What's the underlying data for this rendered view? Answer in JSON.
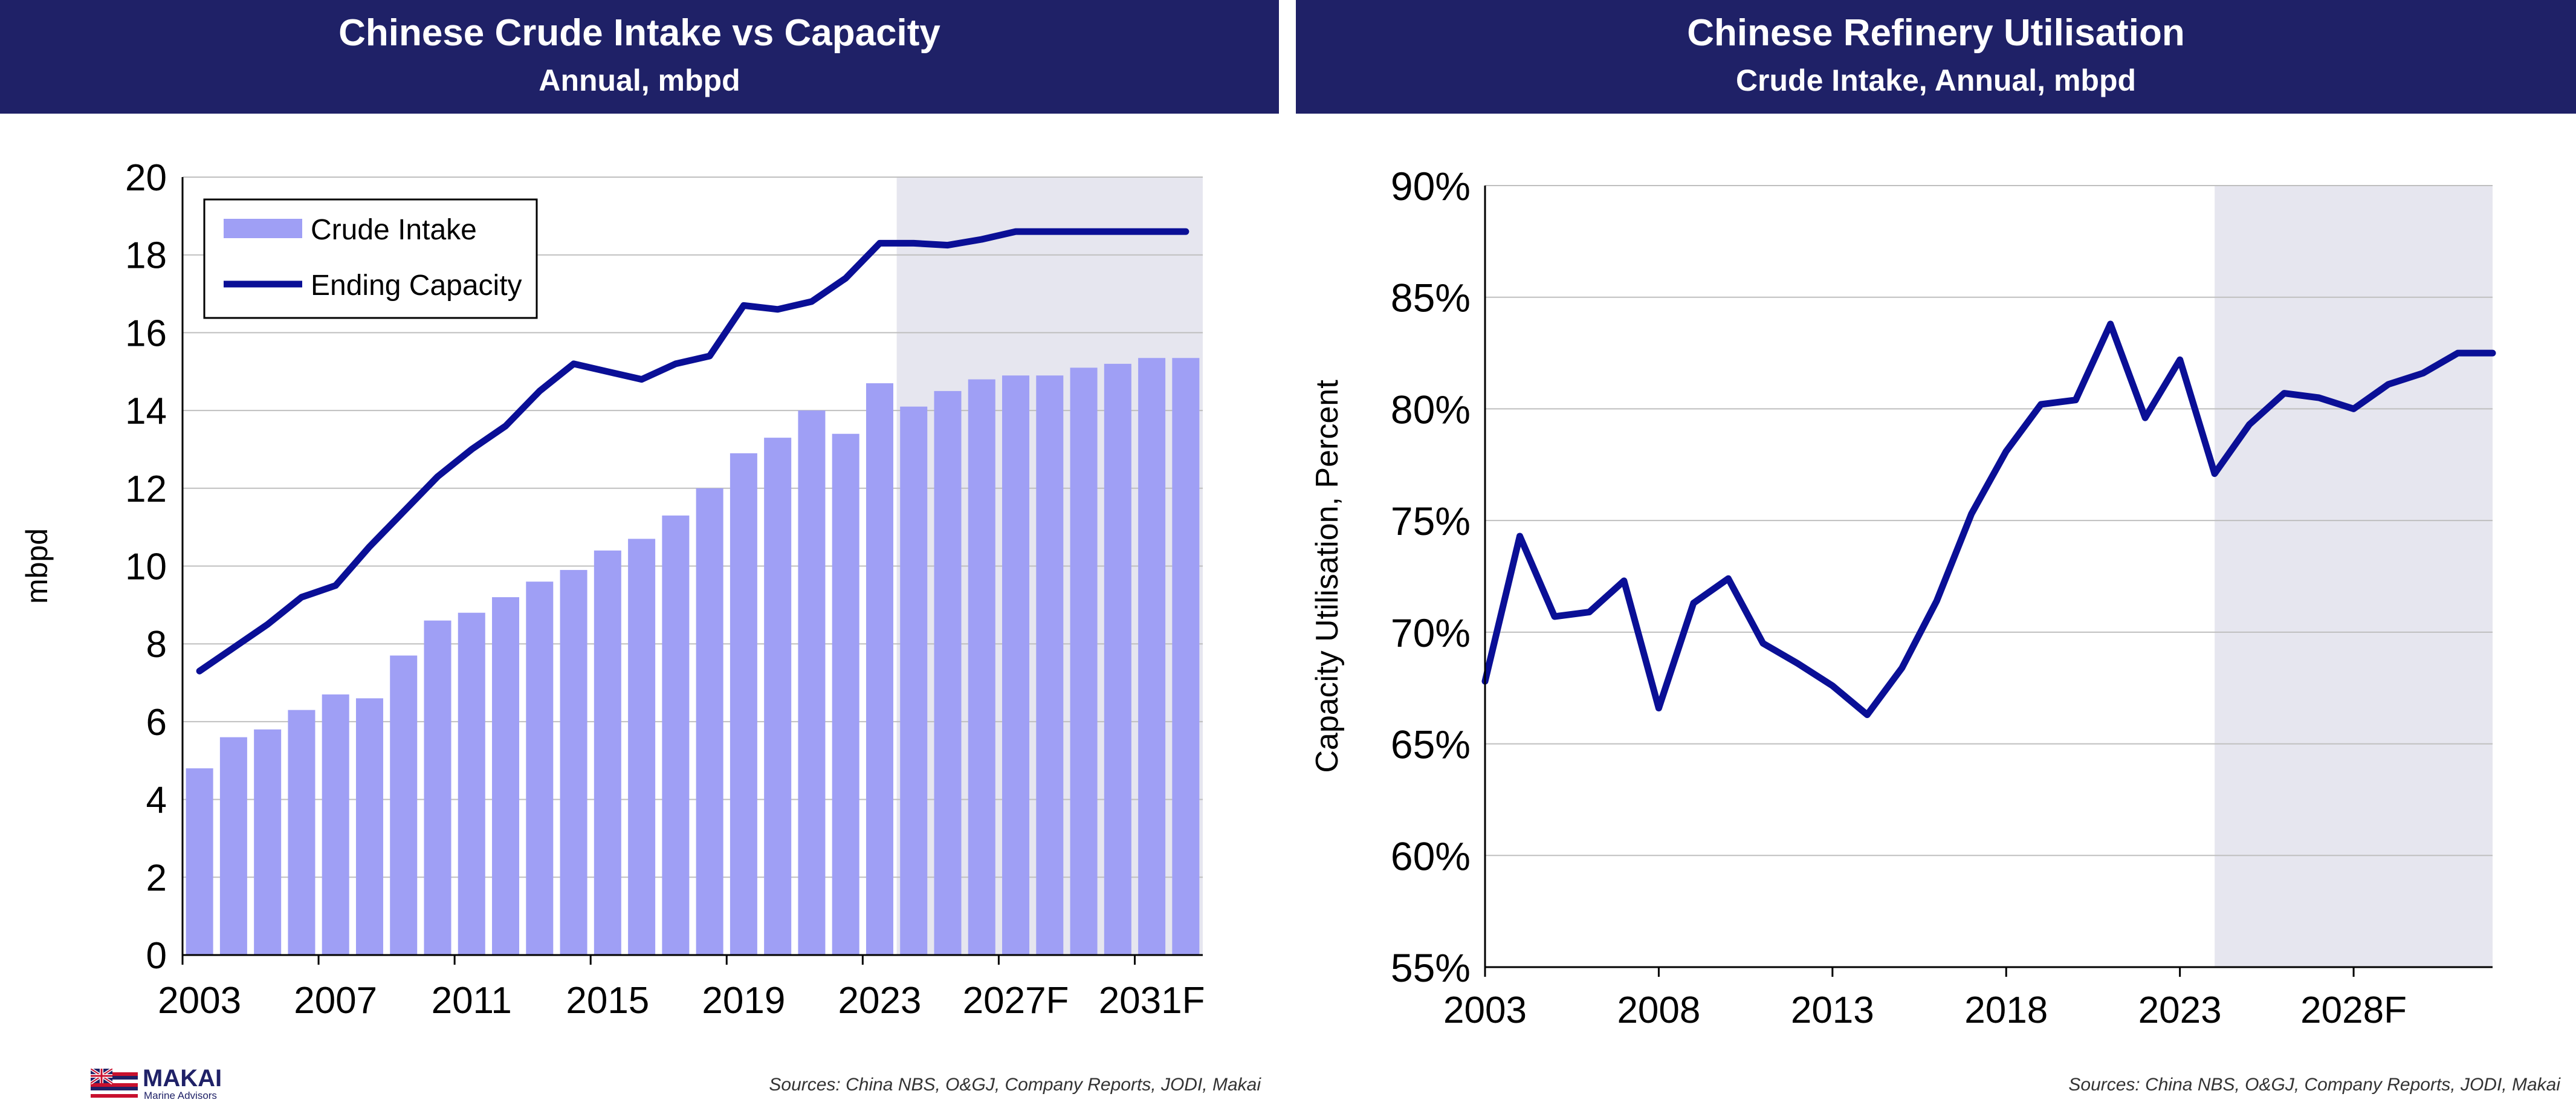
{
  "left_panel": {
    "title": "Chinese Crude Intake vs Capacity",
    "subtitle": "Annual, mbpd",
    "source": "Sources: China NBS, O&GJ, Company Reports, JODI, Makai"
  },
  "right_panel": {
    "title": "Chinese Refinery Utilisation",
    "subtitle": "Crude Intake, Annual, mbpd",
    "source": "Sources: China NBS, O&GJ, Company Reports, JODI, Makai"
  },
  "logo": {
    "name": "MAKAI",
    "tagline": "Marine Advisors"
  },
  "colors": {
    "header_bg": "#1f2167",
    "bar": "#9f9ff5",
    "line": "#0a0f96",
    "forecast_shade": "#e6e6ef",
    "grid": "#bfbfbf"
  },
  "chart_data": [
    {
      "type": "bar+line",
      "title": "Chinese Crude Intake vs Capacity",
      "subtitle": "Annual, mbpd",
      "ylabel": "mbpd",
      "xlabel": "",
      "ylim": [
        0,
        20
      ],
      "yticks": [
        0,
        2,
        4,
        6,
        8,
        10,
        12,
        14,
        16,
        18,
        20
      ],
      "x": [
        2003,
        2004,
        2005,
        2006,
        2007,
        2008,
        2009,
        2010,
        2011,
        2012,
        2013,
        2014,
        2015,
        2016,
        2017,
        2018,
        2019,
        2020,
        2021,
        2022,
        2023,
        2024,
        2025,
        2026,
        2027,
        2028,
        2029,
        2030,
        2031,
        2032
      ],
      "xtick_labels": [
        {
          "x": 2003,
          "label": "2003"
        },
        {
          "x": 2007,
          "label": "2007"
        },
        {
          "x": 2011,
          "label": "2011"
        },
        {
          "x": 2015,
          "label": "2015"
        },
        {
          "x": 2019,
          "label": "2019"
        },
        {
          "x": 2023,
          "label": "2023"
        },
        {
          "x": 2027,
          "label": "2027F"
        },
        {
          "x": 2031,
          "label": "2031F"
        }
      ],
      "forecast_from": 2024,
      "grid": true,
      "legend": "top-left",
      "series": [
        {
          "name": "Crude Intake",
          "kind": "bar",
          "values": [
            4.8,
            5.6,
            5.8,
            6.3,
            6.7,
            6.6,
            7.7,
            8.6,
            8.8,
            9.2,
            9.6,
            9.9,
            10.4,
            10.7,
            11.3,
            12.0,
            12.9,
            13.3,
            14.0,
            13.4,
            14.7,
            14.1,
            14.5,
            14.8,
            14.9,
            14.9,
            15.1,
            15.2,
            15.35,
            15.35
          ]
        },
        {
          "name": "Ending Capacity",
          "kind": "line",
          "values": [
            7.3,
            7.9,
            8.5,
            9.2,
            9.5,
            10.5,
            11.4,
            12.3,
            13.0,
            13.6,
            14.5,
            15.2,
            15.0,
            14.8,
            15.2,
            15.4,
            16.7,
            16.6,
            16.8,
            17.4,
            18.3,
            18.3,
            18.25,
            18.4,
            18.6,
            18.6,
            18.6,
            18.6,
            18.6,
            18.6
          ]
        }
      ]
    },
    {
      "type": "line",
      "title": "Chinese Refinery Utilisation",
      "subtitle": "Crude Intake, Annual, mbpd",
      "ylabel": "Capacity Utilisation, Percent",
      "xlabel": "",
      "ylim": [
        55,
        90
      ],
      "yticks": [
        55,
        60,
        65,
        70,
        75,
        80,
        85,
        90
      ],
      "ytick_labels": [
        "55%",
        "60%",
        "65%",
        "70%",
        "75%",
        "80%",
        "85%",
        "90%"
      ],
      "x": [
        2003,
        2004,
        2005,
        2006,
        2007,
        2008,
        2009,
        2010,
        2011,
        2012,
        2013,
        2014,
        2015,
        2016,
        2017,
        2018,
        2019,
        2020,
        2021,
        2022,
        2023,
        2024,
        2025,
        2026,
        2027,
        2028,
        2029,
        2030,
        2031,
        2032
      ],
      "xlim": [
        2003,
        2032
      ],
      "xtick_labels": [
        {
          "x": 2003,
          "label": "2003"
        },
        {
          "x": 2008,
          "label": "2008"
        },
        {
          "x": 2013,
          "label": "2013"
        },
        {
          "x": 2018,
          "label": "2018"
        },
        {
          "x": 2023,
          "label": "2023"
        },
        {
          "x": 2028,
          "label": "2028F"
        }
      ],
      "forecast_from": 2024,
      "grid": true,
      "series": [
        {
          "name": "",
          "kind": "line",
          "values": [
            67.8,
            74.3,
            70.7,
            70.9,
            72.3,
            66.6,
            71.3,
            72.4,
            69.5,
            68.6,
            67.6,
            66.3,
            68.4,
            71.4,
            75.3,
            78.1,
            80.2,
            80.4,
            83.8,
            79.6,
            82.2,
            77.1,
            79.3,
            80.7,
            80.5,
            80.0,
            81.1,
            81.6,
            82.5,
            82.5
          ]
        }
      ]
    }
  ]
}
